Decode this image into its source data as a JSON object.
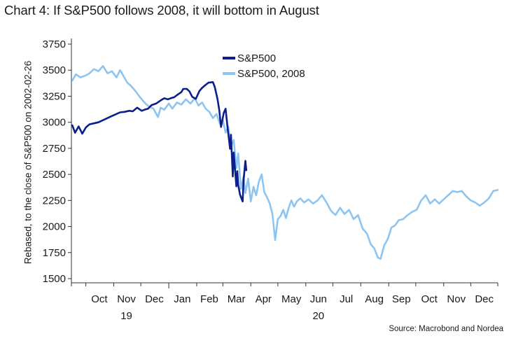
{
  "title": "Chart 4: If S&P500 follows 2008, it will bottom in August",
  "source": "Source: Macrobond and Nordea",
  "colors": {
    "series_2020": "#0a1e8c",
    "series_2008": "#8ec5f0",
    "axis": "#333333"
  },
  "chart_data": {
    "type": "line",
    "title": "Chart 4: If S&P500 follows 2008, it will bottom in August",
    "ylabel": "Rebased, to the close of S&P500 on 2002-02-26",
    "xlabel": "",
    "ylim": [
      1500,
      3750
    ],
    "yticks": [
      1500,
      1750,
      2000,
      2250,
      2500,
      2750,
      3000,
      3250,
      3500,
      3750
    ],
    "xlim": [
      "2019-09-15",
      "2020-12-31"
    ],
    "x_month_labels": [
      "Oct",
      "Nov",
      "Dec",
      "Jan",
      "Feb",
      "Mar",
      "Apr",
      "May",
      "Jun",
      "Jul",
      "Aug",
      "Sep",
      "Oct",
      "Nov",
      "Dec"
    ],
    "x_month_centers": [
      "2019-10-16",
      "2019-11-15",
      "2019-12-16",
      "2020-01-16",
      "2020-02-15",
      "2020-03-16",
      "2020-04-15",
      "2020-05-16",
      "2020-06-15",
      "2020-07-16",
      "2020-08-16",
      "2020-09-15",
      "2020-10-16",
      "2020-11-15",
      "2020-12-16"
    ],
    "x_year_labels": [
      {
        "label": "19",
        "at": "2019-11-15"
      },
      {
        "label": "20",
        "at": "2020-06-15"
      }
    ],
    "legend_position": "top-center",
    "grid": false,
    "series": [
      {
        "name": "S&P500",
        "color": "#0a1e8c",
        "points": [
          [
            "2019-09-16",
            2970
          ],
          [
            "2019-09-19",
            2900
          ],
          [
            "2019-09-23",
            2960
          ],
          [
            "2019-09-27",
            2890
          ],
          [
            "2019-10-01",
            2950
          ],
          [
            "2019-10-05",
            2980
          ],
          [
            "2019-10-10",
            2990
          ],
          [
            "2019-10-15",
            3000
          ],
          [
            "2019-10-20",
            3020
          ],
          [
            "2019-10-25",
            3040
          ],
          [
            "2019-10-30",
            3060
          ],
          [
            "2019-11-04",
            3080
          ],
          [
            "2019-11-08",
            3095
          ],
          [
            "2019-11-13",
            3100
          ],
          [
            "2019-11-18",
            3110
          ],
          [
            "2019-11-22",
            3105
          ],
          [
            "2019-11-27",
            3140
          ],
          [
            "2019-12-02",
            3110
          ],
          [
            "2019-12-05",
            3120
          ],
          [
            "2019-12-09",
            3130
          ],
          [
            "2019-12-13",
            3165
          ],
          [
            "2019-12-18",
            3180
          ],
          [
            "2019-12-23",
            3210
          ],
          [
            "2019-12-27",
            3230
          ],
          [
            "2019-12-31",
            3220
          ],
          [
            "2020-01-03",
            3230
          ],
          [
            "2020-01-07",
            3240
          ],
          [
            "2020-01-10",
            3260
          ],
          [
            "2020-01-15",
            3290
          ],
          [
            "2020-01-17",
            3320
          ],
          [
            "2020-01-21",
            3320
          ],
          [
            "2020-01-24",
            3295
          ],
          [
            "2020-01-27",
            3245
          ],
          [
            "2020-01-31",
            3225
          ],
          [
            "2020-02-04",
            3300
          ],
          [
            "2020-02-07",
            3330
          ],
          [
            "2020-02-11",
            3360
          ],
          [
            "2020-02-14",
            3380
          ],
          [
            "2020-02-19",
            3385
          ],
          [
            "2020-02-21",
            3340
          ],
          [
            "2020-02-24",
            3225
          ],
          [
            "2020-02-26",
            3115
          ],
          [
            "2020-02-28",
            2955
          ],
          [
            "2020-03-02",
            3090
          ],
          [
            "2020-03-04",
            3130
          ],
          [
            "2020-03-06",
            2970
          ],
          [
            "2020-03-09",
            2745
          ],
          [
            "2020-03-10",
            2880
          ],
          [
            "2020-03-12",
            2480
          ],
          [
            "2020-03-13",
            2710
          ],
          [
            "2020-03-16",
            2385
          ],
          [
            "2020-03-17",
            2530
          ],
          [
            "2020-03-18",
            2400
          ],
          [
            "2020-03-20",
            2305
          ],
          [
            "2020-03-23",
            2240
          ],
          [
            "2020-03-24",
            2445
          ],
          [
            "2020-03-26",
            2630
          ],
          [
            "2020-03-27",
            2540
          ]
        ]
      },
      {
        "name": "S&P500, 2008",
        "color": "#8ec5f0",
        "points": [
          [
            "2019-09-16",
            3400
          ],
          [
            "2019-09-20",
            3460
          ],
          [
            "2019-09-25",
            3430
          ],
          [
            "2019-10-01",
            3450
          ],
          [
            "2019-10-05",
            3470
          ],
          [
            "2019-10-10",
            3510
          ],
          [
            "2019-10-15",
            3490
          ],
          [
            "2019-10-20",
            3540
          ],
          [
            "2019-10-25",
            3470
          ],
          [
            "2019-10-30",
            3490
          ],
          [
            "2019-11-04",
            3430
          ],
          [
            "2019-11-08",
            3500
          ],
          [
            "2019-11-12",
            3440
          ],
          [
            "2019-11-16",
            3380
          ],
          [
            "2019-11-20",
            3350
          ],
          [
            "2019-11-25",
            3300
          ],
          [
            "2019-11-30",
            3240
          ],
          [
            "2019-12-05",
            3190
          ],
          [
            "2019-12-10",
            3150
          ],
          [
            "2019-12-15",
            3130
          ],
          [
            "2019-12-20",
            3050
          ],
          [
            "2019-12-23",
            3140
          ],
          [
            "2019-12-27",
            3120
          ],
          [
            "2020-01-01",
            3180
          ],
          [
            "2020-01-05",
            3130
          ],
          [
            "2020-01-10",
            3190
          ],
          [
            "2020-01-15",
            3170
          ],
          [
            "2020-01-20",
            3220
          ],
          [
            "2020-01-25",
            3180
          ],
          [
            "2020-01-30",
            3230
          ],
          [
            "2020-02-03",
            3160
          ],
          [
            "2020-02-07",
            3190
          ],
          [
            "2020-02-11",
            3130
          ],
          [
            "2020-02-15",
            3100
          ],
          [
            "2020-02-19",
            3040
          ],
          [
            "2020-02-23",
            3080
          ],
          [
            "2020-02-27",
            2980
          ],
          [
            "2020-03-01",
            3020
          ],
          [
            "2020-03-04",
            2900
          ],
          [
            "2020-03-07",
            2960
          ],
          [
            "2020-03-10",
            2760
          ],
          [
            "2020-03-13",
            2830
          ],
          [
            "2020-03-16",
            2560
          ],
          [
            "2020-03-18",
            2700
          ],
          [
            "2020-03-21",
            2360
          ],
          [
            "2020-03-24",
            2480
          ],
          [
            "2020-03-26",
            2320
          ],
          [
            "2020-03-29",
            2460
          ],
          [
            "2020-04-01",
            2240
          ],
          [
            "2020-04-04",
            2380
          ],
          [
            "2020-04-07",
            2300
          ],
          [
            "2020-04-10",
            2430
          ],
          [
            "2020-04-13",
            2500
          ],
          [
            "2020-04-16",
            2330
          ],
          [
            "2020-04-19",
            2280
          ],
          [
            "2020-04-22",
            2220
          ],
          [
            "2020-04-25",
            2120
          ],
          [
            "2020-04-28",
            1870
          ],
          [
            "2020-05-01",
            2070
          ],
          [
            "2020-05-04",
            2100
          ],
          [
            "2020-05-07",
            2160
          ],
          [
            "2020-05-10",
            2080
          ],
          [
            "2020-05-13",
            2180
          ],
          [
            "2020-05-16",
            2250
          ],
          [
            "2020-05-19",
            2190
          ],
          [
            "2020-05-22",
            2240
          ],
          [
            "2020-05-26",
            2270
          ],
          [
            "2020-05-30",
            2230
          ],
          [
            "2020-06-04",
            2260
          ],
          [
            "2020-06-09",
            2220
          ],
          [
            "2020-06-14",
            2250
          ],
          [
            "2020-06-19",
            2300
          ],
          [
            "2020-06-24",
            2230
          ],
          [
            "2020-06-29",
            2150
          ],
          [
            "2020-07-04",
            2110
          ],
          [
            "2020-07-09",
            2180
          ],
          [
            "2020-07-14",
            2120
          ],
          [
            "2020-07-19",
            2160
          ],
          [
            "2020-07-24",
            2070
          ],
          [
            "2020-07-29",
            2110
          ],
          [
            "2020-08-03",
            1980
          ],
          [
            "2020-08-08",
            1930
          ],
          [
            "2020-08-12",
            1830
          ],
          [
            "2020-08-16",
            1790
          ],
          [
            "2020-08-20",
            1700
          ],
          [
            "2020-08-23",
            1690
          ],
          [
            "2020-08-27",
            1820
          ],
          [
            "2020-08-31",
            1880
          ],
          [
            "2020-09-04",
            1990
          ],
          [
            "2020-09-08",
            2010
          ],
          [
            "2020-09-12",
            2060
          ],
          [
            "2020-09-17",
            2070
          ],
          [
            "2020-09-22",
            2110
          ],
          [
            "2020-09-27",
            2140
          ],
          [
            "2020-10-02",
            2160
          ],
          [
            "2020-10-07",
            2250
          ],
          [
            "2020-10-12",
            2300
          ],
          [
            "2020-10-17",
            2220
          ],
          [
            "2020-10-22",
            2260
          ],
          [
            "2020-10-27",
            2220
          ],
          [
            "2020-11-01",
            2260
          ],
          [
            "2020-11-06",
            2300
          ],
          [
            "2020-11-11",
            2340
          ],
          [
            "2020-11-16",
            2330
          ],
          [
            "2020-11-21",
            2340
          ],
          [
            "2020-11-26",
            2290
          ],
          [
            "2020-12-01",
            2250
          ],
          [
            "2020-12-06",
            2230
          ],
          [
            "2020-12-11",
            2200
          ],
          [
            "2020-12-16",
            2230
          ],
          [
            "2020-12-21",
            2270
          ],
          [
            "2020-12-26",
            2340
          ],
          [
            "2020-12-31",
            2350
          ]
        ]
      }
    ]
  }
}
